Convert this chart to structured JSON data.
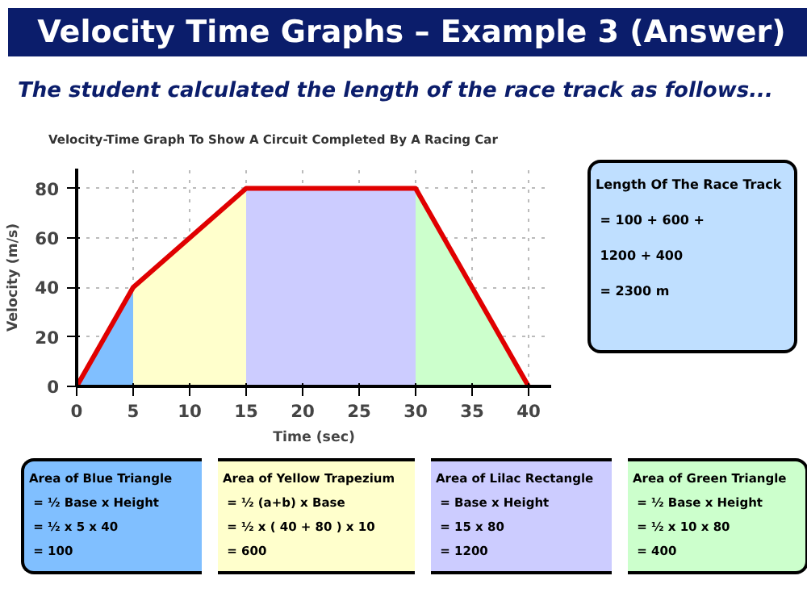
{
  "chart_data": {
    "type": "area",
    "title": "Velocity Time Graphs – Example 3 (Answer)",
    "subtitle": "The student calculated the length of the race track as follows...",
    "xlabel": "Time (sec)",
    "ylabel": "Velocity (m/s)",
    "xlim": [
      0,
      42
    ],
    "ylim": [
      0,
      88
    ],
    "xticks": [
      0,
      5,
      10,
      15,
      20,
      25,
      30,
      35,
      40
    ],
    "yticks": [
      0,
      20,
      40,
      60,
      80
    ],
    "grid": true,
    "series": [
      {
        "color": "#80bfff",
        "x": [
          0,
          5
        ],
        "values": [
          0,
          40
        ]
      },
      {
        "color": "#ffffcc",
        "x": [
          5,
          15
        ],
        "values": [
          40,
          80
        ]
      },
      {
        "color": "#ccccff",
        "x": [
          15,
          30
        ],
        "values": [
          80,
          80
        ]
      },
      {
        "color": "#ccffcc",
        "x": [
          30,
          40
        ],
        "values": [
          80,
          0
        ]
      },
      {
        "type": "line",
        "color": "#e00000",
        "x": [
          0,
          5,
          15,
          30,
          40
        ],
        "values": [
          0,
          40,
          80,
          80,
          0
        ]
      }
    ],
    "annotations": [
      "Velocity-Time Graph To Show A Circuit Completed By A Racing Car",
      "Length Of The Race Track\n= 100 + 600 +\n1200 + 400\n= 2300 m",
      "Area of Blue Triangle\n= ½ Base x Height\n= ½ x 5 x 40\n= 100",
      "Area of Yellow Trapezium\n= ½ (a+b) x Base\n= ½ x ( 40 + 80 ) x 10\n= 600",
      "Area of Lilac Rectangle\n= Base x Height\n= 15 x 80\n= 1200",
      "Area of Green Triangle\n= ½ Base x Height\n= ½ x 10 x 80\n= 400"
    ]
  }
}
